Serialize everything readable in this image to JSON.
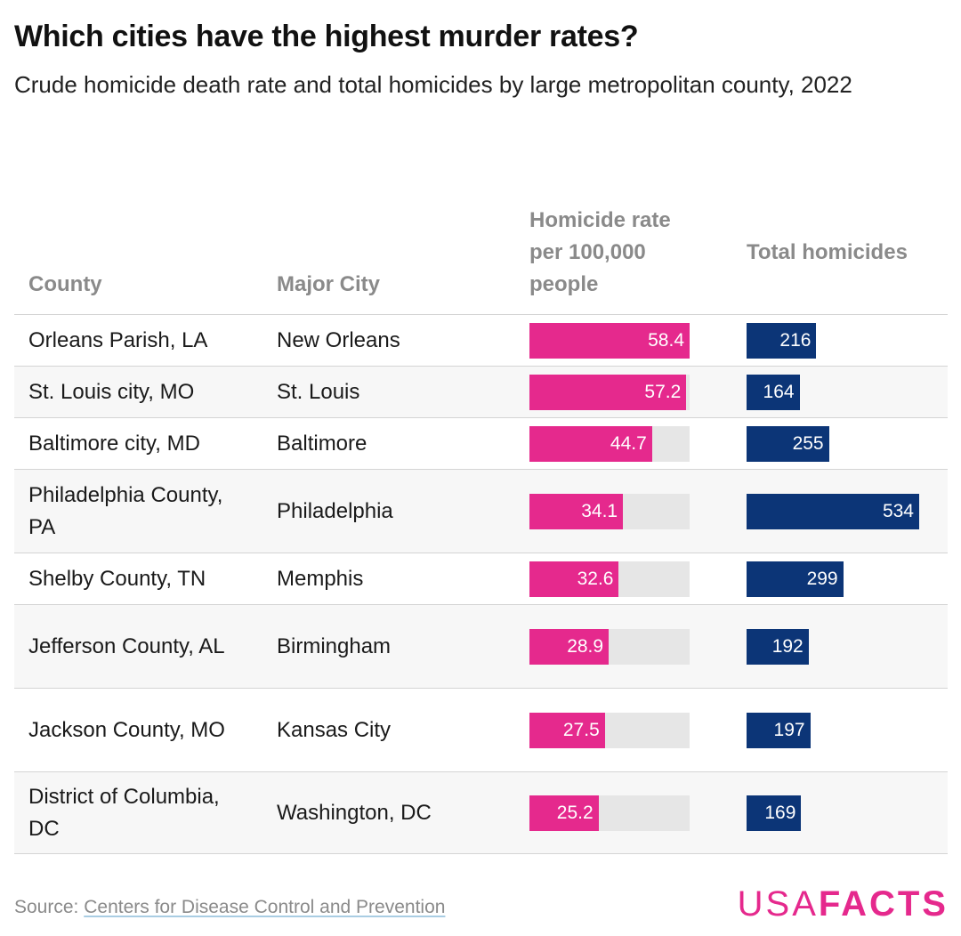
{
  "title": "Which cities have the highest murder rates?",
  "subtitle": "Crude homicide death rate and total homicides by large metropolitan county, 2022",
  "chart_data": {
    "type": "table",
    "columns": [
      "County",
      "Major City",
      "Homicide rate per 100,000 people",
      "Total homicides"
    ],
    "rate_max": 58.4,
    "total_max": 534,
    "rows": [
      {
        "county": "Orleans Parish, LA",
        "city": "New Orleans",
        "rate": 58.4,
        "rate_label": "58.4",
        "total": 216,
        "total_label": "216"
      },
      {
        "county": "St. Louis city, MO",
        "city": "St. Louis",
        "rate": 57.2,
        "rate_label": "57.2",
        "total": 164,
        "total_label": "164"
      },
      {
        "county": "Baltimore city, MD",
        "city": "Baltimore",
        "rate": 44.7,
        "rate_label": "44.7",
        "total": 255,
        "total_label": "255"
      },
      {
        "county": "Philadelphia County, PA",
        "city": "Philadelphia",
        "rate": 34.1,
        "rate_label": "34.1",
        "total": 534,
        "total_label": "534"
      },
      {
        "county": "Shelby County, TN",
        "city": "Memphis",
        "rate": 32.6,
        "rate_label": "32.6",
        "total": 299,
        "total_label": "299"
      },
      {
        "county": "Jefferson County, AL",
        "city": "Birmingham",
        "rate": 28.9,
        "rate_label": "28.9",
        "total": 192,
        "total_label": "192"
      },
      {
        "county": "Jackson County, MO",
        "city": "Kansas City",
        "rate": 27.5,
        "rate_label": "27.5",
        "total": 197,
        "total_label": "197"
      },
      {
        "county": "District of Columbia, DC",
        "city": "Washington, DC",
        "rate": 25.2,
        "rate_label": "25.2",
        "total": 169,
        "total_label": "169"
      }
    ],
    "colors": {
      "rate_bar": "#e5298d",
      "rate_track": "#e6e6e6",
      "total_bar": "#0c3577"
    }
  },
  "footer": {
    "source_prefix": "Source: ",
    "source_link": "Centers for Disease Control and Prevention",
    "logo_usa": "USA",
    "logo_facts": "FACTS"
  }
}
